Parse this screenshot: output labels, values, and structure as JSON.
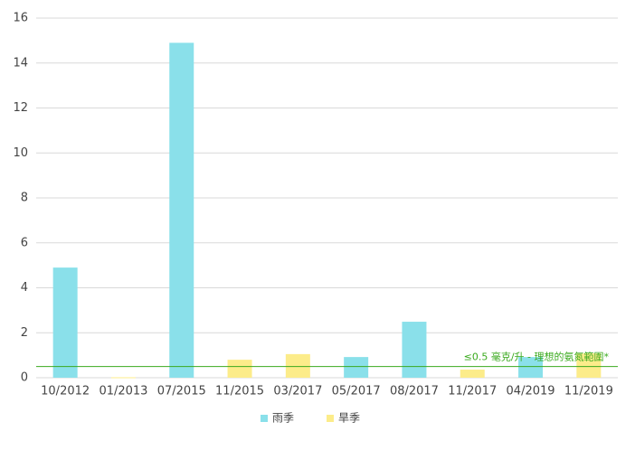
{
  "chart_data": {
    "type": "bar",
    "categories": [
      "10/2012",
      "01/2013",
      "07/2015",
      "11/2015",
      "03/2017",
      "05/2017",
      "08/2017",
      "11/2017",
      "04/2019",
      "11/2019"
    ],
    "series": [
      {
        "name": "雨季",
        "color": "#8ae0ea",
        "values": [
          4.9,
          null,
          14.9,
          null,
          null,
          0.92,
          2.49,
          null,
          0.92,
          null
        ]
      },
      {
        "name": "旱季",
        "color": "#fcec8a",
        "values": [
          null,
          0.02,
          null,
          0.8,
          1.05,
          null,
          null,
          0.36,
          null,
          1.08
        ]
      }
    ],
    "ylim": [
      0,
      16
    ],
    "yticks": [
      0,
      2,
      4,
      6,
      8,
      10,
      12,
      14,
      16
    ],
    "grid": true,
    "threshold": {
      "value": 0.5,
      "label": "≤0.5 毫克/升 - 理想的氨氮範圍*",
      "color": "#3aaa1e"
    },
    "legend": "bottom"
  }
}
